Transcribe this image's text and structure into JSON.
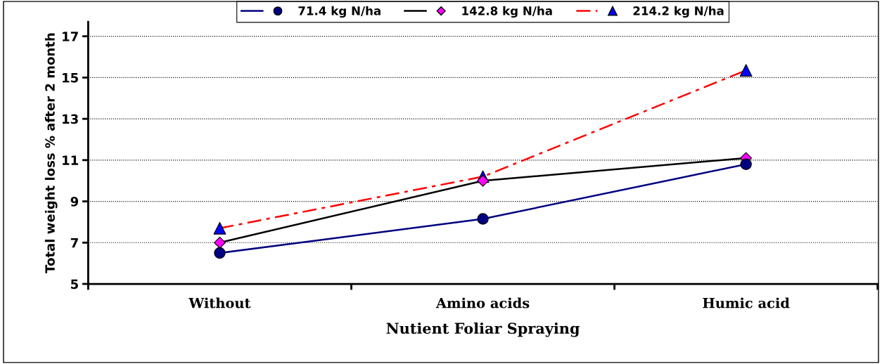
{
  "chart_data": {
    "type": "line",
    "xlabel": "Nutient Foliar Spraying",
    "ylabel": "Total weight loss % after 2 month",
    "categories": [
      "Without",
      "Amino acids",
      "Humic acid"
    ],
    "series": [
      {
        "name": "71.4 kg N/ha",
        "color": "#000080",
        "colors": [
          "#000080",
          "#000080",
          "#000080"
        ],
        "marker": "circle",
        "line_style": "solid",
        "values": [
          6.5,
          8.15,
          10.8
        ]
      },
      {
        "name": "142.8 kg N/ha",
        "color": "#000000",
        "colors": [
          "#ff00ff",
          "#ff00ff",
          "#ff00ff"
        ],
        "marker": "diamond",
        "line_style": "solid",
        "values": [
          7.0,
          10.0,
          11.1
        ]
      },
      {
        "name": "214.2 kg N/ha",
        "color": "#ff0000",
        "colors": [
          "#0000ff",
          "#0000ff",
          "#0000ff"
        ],
        "marker": "triangle",
        "line_style": "dashed",
        "values": [
          7.7,
          10.2,
          15.35
        ]
      }
    ],
    "ylim": [
      5,
      17.7
    ],
    "yticks": [
      5,
      7,
      9,
      11,
      13,
      15,
      17
    ],
    "grid": "y",
    "legend": "top"
  }
}
